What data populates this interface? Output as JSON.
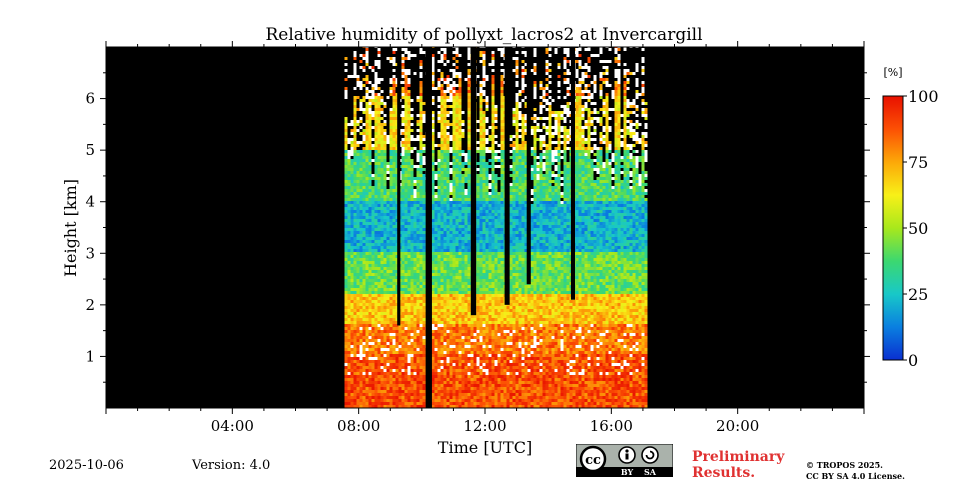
{
  "chart_data": {
    "type": "heatmap",
    "title": "Relative humidity of pollyxt_lacros2 at Invercargill",
    "xlabel": "Time [UTC]",
    "ylabel": "Height [km]",
    "xlim": [
      0,
      24
    ],
    "ylim": [
      0,
      7
    ],
    "x_ticks": [
      {
        "value": 4,
        "label": "04:00"
      },
      {
        "value": 8,
        "label": "08:00"
      },
      {
        "value": 12,
        "label": "12:00"
      },
      {
        "value": 16,
        "label": "16:00"
      },
      {
        "value": 20,
        "label": "20:00"
      }
    ],
    "y_ticks": [
      {
        "value": 1,
        "label": "1"
      },
      {
        "value": 2,
        "label": "2"
      },
      {
        "value": 3,
        "label": "3"
      },
      {
        "value": 4,
        "label": "4"
      },
      {
        "value": 5,
        "label": "5"
      },
      {
        "value": 6,
        "label": "6"
      }
    ],
    "background_color": "#000000",
    "colorbar": {
      "unit": "[%]",
      "range": [
        0,
        100
      ],
      "ticks": [
        {
          "value": 0,
          "label": "0"
        },
        {
          "value": 25,
          "label": "25"
        },
        {
          "value": 50,
          "label": "50"
        },
        {
          "value": 75,
          "label": "75"
        },
        {
          "value": 100,
          "label": "100"
        }
      ],
      "colormap": [
        "#0a2fd0",
        "#0a7fe0",
        "#18c8c8",
        "#3cd870",
        "#a8e81c",
        "#f8f018",
        "#fca808",
        "#fc5004",
        "#e81000"
      ]
    },
    "data_period_utc": [
      7.55,
      17.05
    ],
    "data_gaps": [
      {
        "time_start": 10.12,
        "time_end": 10.32,
        "from_height_km": 0
      },
      {
        "time_start": 9.22,
        "time_end": 9.32,
        "from_height_km": 1.6
      },
      {
        "time_start": 11.55,
        "time_end": 11.72,
        "from_height_km": 1.8
      },
      {
        "time_start": 12.62,
        "time_end": 12.78,
        "from_height_km": 2.0
      },
      {
        "time_start": 13.32,
        "time_end": 13.45,
        "from_height_km": 2.4
      },
      {
        "time_start": 14.72,
        "time_end": 14.85,
        "from_height_km": 2.1
      }
    ],
    "profile_bands": [
      {
        "from_km": 0.0,
        "to_km": 1.0,
        "rh_percent": 88
      },
      {
        "from_km": 1.0,
        "to_km": 1.6,
        "rh_percent": 82
      },
      {
        "from_km": 1.6,
        "to_km": 2.2,
        "rh_percent": 70
      },
      {
        "from_km": 2.2,
        "to_km": 3.0,
        "rh_percent": 42
      },
      {
        "from_km": 3.0,
        "to_km": 4.0,
        "rh_percent": 22
      },
      {
        "from_km": 4.0,
        "to_km": 5.0,
        "rh_percent": 38
      },
      {
        "from_km": 5.0,
        "to_km": 6.0,
        "rh_percent": 65
      },
      {
        "from_km": 6.0,
        "to_km": 7.0,
        "rh_percent": 80
      }
    ],
    "signal_top_km": 5.2
  },
  "footer": {
    "date": "2025-10-06",
    "version": "Version: 4.0",
    "preliminary_line1": "Preliminary",
    "preliminary_line2": "Results.",
    "copyright_line1": "© TROPOS 2025.",
    "copyright_line2": "CC BY SA 4.0 License.",
    "cc_labels": {
      "by": "BY",
      "sa": "SA",
      "cc": "cc"
    }
  }
}
